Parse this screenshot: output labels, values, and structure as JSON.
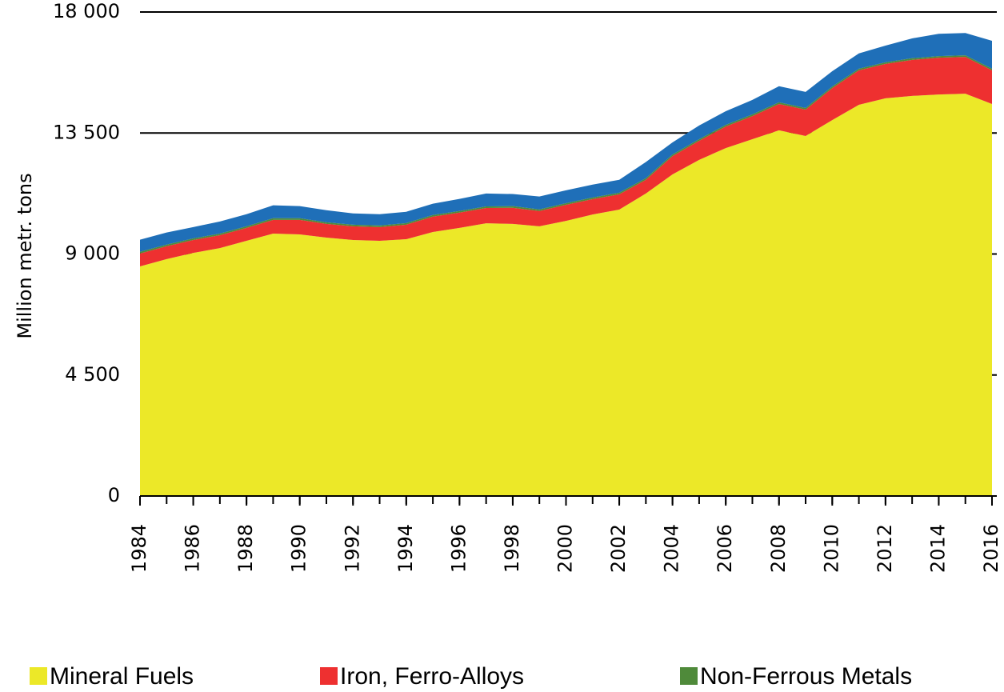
{
  "chart_data": {
    "type": "stacked-area",
    "y_label": "Million metr. tons",
    "x": [
      1984,
      1985,
      1986,
      1987,
      1988,
      1989,
      1990,
      1991,
      1992,
      1993,
      1994,
      1995,
      1996,
      1997,
      1998,
      1999,
      2000,
      2001,
      2002,
      2003,
      2004,
      2005,
      2006,
      2007,
      2008,
      2009,
      2010,
      2011,
      2012,
      2013,
      2014,
      2015,
      2016
    ],
    "xlim": [
      1984,
      2016
    ],
    "xticks": [
      1984,
      1986,
      1988,
      1990,
      1992,
      1994,
      1996,
      1998,
      2000,
      2002,
      2004,
      2006,
      2008,
      2010,
      2012,
      2014,
      2016
    ],
    "ylim": [
      0,
      18000
    ],
    "yticks": [
      0,
      {
        "value": 4500,
        "label": "4 500"
      },
      {
        "value": 9000,
        "label": "9 000"
      },
      {
        "value": 13500,
        "label": "13 500"
      },
      {
        "value": 18000,
        "label": "18 000"
      }
    ],
    "grid": true,
    "series": [
      {
        "name": "Mineral Fuels",
        "color": "#ece828",
        "values": [
          8540,
          8810,
          9040,
          9220,
          9490,
          9760,
          9730,
          9610,
          9520,
          9490,
          9550,
          9820,
          9970,
          10140,
          10120,
          10030,
          10230,
          10470,
          10650,
          11250,
          11960,
          12500,
          12940,
          13270,
          13600,
          13390,
          13980,
          14550,
          14790,
          14880,
          14930,
          14960,
          14580
        ]
      },
      {
        "name": "Iron, Ferro-Alloys",
        "color": "#ee3030",
        "values": [
          480,
          480,
          480,
          480,
          480,
          510,
          540,
          510,
          510,
          510,
          540,
          570,
          570,
          570,
          600,
          570,
          600,
          570,
          570,
          510,
          680,
          710,
          800,
          860,
          980,
          980,
          1190,
          1280,
          1280,
          1340,
          1370,
          1370,
          1250
        ]
      },
      {
        "name": "Non-Ferrous  Metals",
        "color": "#4f8a3a",
        "values": [
          60,
          60,
          60,
          60,
          60,
          60,
          60,
          60,
          60,
          60,
          60,
          60,
          60,
          60,
          60,
          60,
          60,
          60,
          60,
          60,
          60,
          60,
          60,
          60,
          60,
          60,
          60,
          60,
          60,
          60,
          60,
          60,
          60
        ]
      },
      {
        "color": "#1f6fb8",
        "values": [
          450,
          450,
          420,
          450,
          450,
          480,
          450,
          450,
          420,
          420,
          420,
          420,
          450,
          480,
          450,
          480,
          480,
          480,
          480,
          600,
          450,
          510,
          510,
          540,
          600,
          600,
          570,
          570,
          620,
          740,
          830,
          830,
          1040
        ]
      }
    ]
  }
}
